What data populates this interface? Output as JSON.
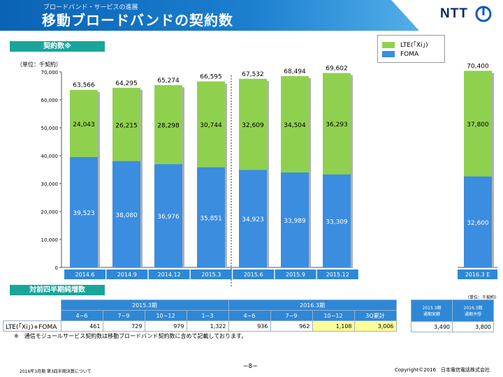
{
  "header": {
    "subtitle": "ブロードバンド・サービスの進展",
    "title": "移動ブロードバンドの契約数"
  },
  "logo": {
    "text": "NTT"
  },
  "section1": {
    "label": "契約数※"
  },
  "section2": {
    "label": "対前四半期純増数"
  },
  "chart_units": "（単位：千契約）",
  "legend": [
    {
      "label": "LTE(「Xi」)",
      "color": "#8fd14f"
    },
    {
      "label": "FOMA",
      "color": "#3b8ddf"
    }
  ],
  "chart_data": {
    "type": "bar",
    "stacked": true,
    "categories": [
      "2014.6",
      "2014.9",
      "2014.12",
      "2015.3",
      "2015.6",
      "2015.9",
      "2015.12",
      "2016.3 E"
    ],
    "series": [
      {
        "name": "FOMA",
        "values": [
          39523,
          38080,
          36976,
          35851,
          34923,
          33989,
          33309,
          32600
        ],
        "labels": [
          "39,523",
          "38,080",
          "36,976",
          "35,851",
          "34,923",
          "33,989",
          "33,309",
          "32,600"
        ],
        "color": "#3b8ddf"
      },
      {
        "name": "LTE(「Xi」)",
        "values": [
          24043,
          26215,
          28298,
          30744,
          32609,
          34504,
          36293,
          37800
        ],
        "labels": [
          "24,043",
          "26,215",
          "28,298",
          "30,744",
          "32,609",
          "34,504",
          "36,293",
          "37,800"
        ],
        "color": "#8fd14f"
      }
    ],
    "totals": [
      "63,566",
      "64,295",
      "65,274",
      "66,595",
      "67,532",
      "68,494",
      "69,602",
      "70,400"
    ],
    "yticks": [
      "0",
      "10,000",
      "20,000",
      "30,000",
      "40,000",
      "50,000",
      "60,000",
      "70,000"
    ],
    "ylim": [
      0,
      70000
    ],
    "grid": false,
    "legend_position": "top-right"
  },
  "table": {
    "units": "（単位：千契約）",
    "fy2015_label": "2015.3期",
    "fy2016_label": "2016.3期",
    "fy2015_periods": [
      "4−6",
      "7−9",
      "10−12",
      "1−3"
    ],
    "fy2016_periods": [
      "4−6",
      "7−9",
      "10−12",
      "3Q累計"
    ],
    "actual_header": "2015.3期\n通期実績",
    "forecast_header": "2016.3期\n通期予想",
    "row_label": "LTE(「Xi」)+FOMA",
    "fy2015_values": [
      "461",
      "729",
      "979",
      "1,322"
    ],
    "fy2016_values": [
      "936",
      "962",
      "1,108",
      "3,006"
    ],
    "actual_value": "3,490",
    "forecast_value": "3,800"
  },
  "note": "※　通信モジュールサービス契約数は移動ブロードバンド契約数に含めて記載しております。",
  "footer": {
    "left": "2016年3月期 第3四半期決算について",
    "center": "−8−",
    "right": "Copyright©2016　日本電信電話株式会社"
  }
}
